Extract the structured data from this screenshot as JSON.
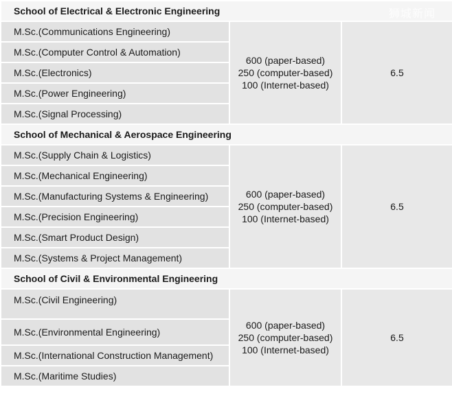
{
  "sections": [
    {
      "heading": "School of Electrical & Electronic Engineering",
      "toefl": [
        "600 (paper-based)",
        "250 (computer-based)",
        "100 (Internet-based)"
      ],
      "ielts": "6.5",
      "programs": [
        "M.Sc.(Communications Engineering)",
        "M.Sc.(Computer Control & Automation)",
        "M.Sc.(Electronics)",
        "M.Sc.(Power Engineering)",
        "M.Sc.(Signal Processing)"
      ]
    },
    {
      "heading": "School of Mechanical & Aerospace Engineering",
      "toefl": [
        "600 (paper-based)",
        "250 (computer-based)",
        "100 (Internet-based)"
      ],
      "ielts": "6.5",
      "programs": [
        "M.Sc.(Supply Chain & Logistics)",
        "M.Sc.(Mechanical Engineering)",
        "M.Sc.(Manufacturing Systems & Engineering)",
        "M.Sc.(Precision Engineering)",
        "M.Sc.(Smart Product Design)",
        "M.Sc.(Systems & Project Management)"
      ]
    },
    {
      "heading": "School of Civil & Environmental Engineering",
      "toefl": [
        "600 (paper-based)",
        "250 (computer-based)",
        "100 (Internet-based)"
      ],
      "ielts": "6.5",
      "programs": [
        "M.Sc.(Civil Engineering)",
        "M.Sc.(Environmental Engineering)",
        "M.Sc.(International Construction Management)",
        "M.Sc.(Maritime Studies)"
      ]
    }
  ],
  "watermark": "狮城新闻"
}
